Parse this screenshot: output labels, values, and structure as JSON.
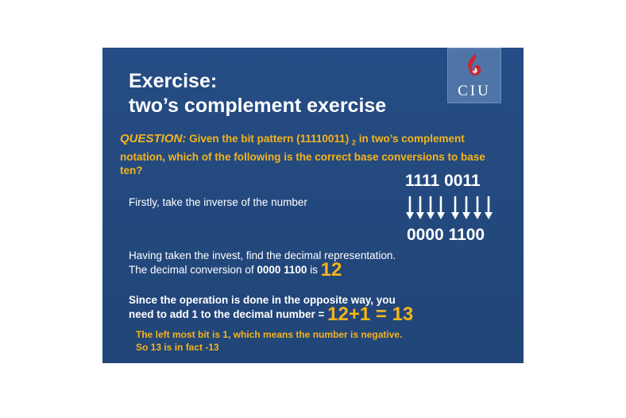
{
  "logo": {
    "text": "CIU",
    "accent": "#c8282e"
  },
  "title": {
    "line1": "Exercise:",
    "line2": "two’s complement exercise"
  },
  "question": {
    "label": "QUESTION:",
    "text_a": " Given the bit pattern (11110011) ",
    "subscript": "2",
    "text_b": " in two’s complement notation, which of the following is the correct base conversions to base ten?"
  },
  "bits": {
    "original": "1111 0011",
    "inverted": "0000 1100"
  },
  "steps": {
    "step1": "Firstly, take the inverse of the number",
    "step2_line1": "Having taken the invest, find the decimal representation.",
    "step2_line2_a": "The decimal conversion of ",
    "step2_line2_bold": "0000 1100",
    "step2_line2_b": " is ",
    "step2_result": "12",
    "step3_line1": "Since the operation is done in the opposite way, you",
    "step3_line2": "need to add 1 to the decimal number = ",
    "step3_result": "12+1 = 13"
  },
  "note": {
    "line1": "The left most bit is 1, which means the number is negative.",
    "line2": "So 13 is in fact -13"
  },
  "colors": {
    "background": "#23497f",
    "accent": "#f5b41b",
    "text": "#ffffff"
  }
}
